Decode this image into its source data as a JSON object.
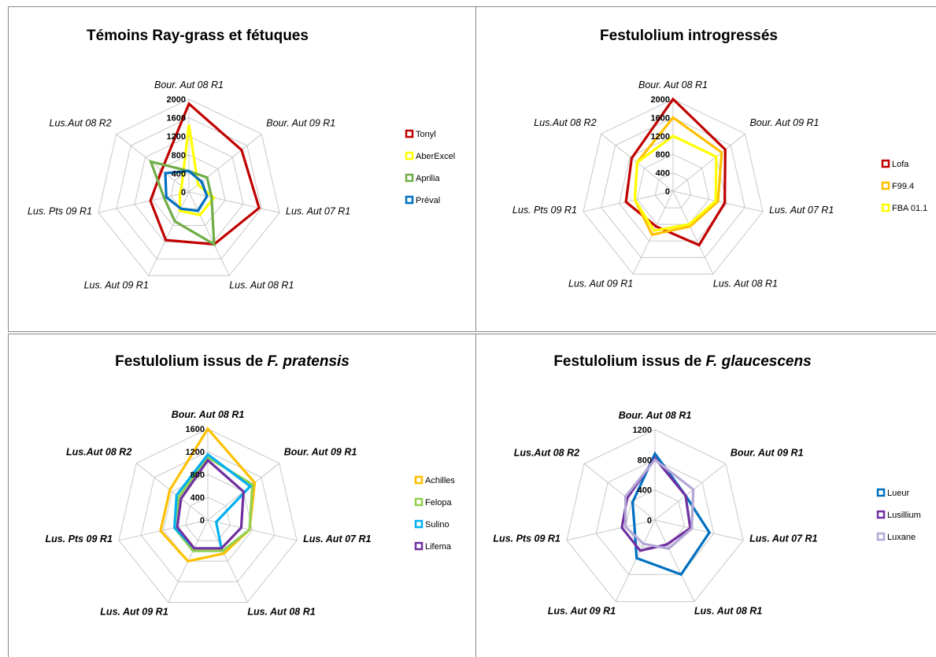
{
  "chart_data": [
    {
      "type": "radar",
      "title": "Témoins Ray-grass et fétuques",
      "title_italic": "",
      "axes": [
        "Bour. Aut 08 R1",
        "Bour. Aut 09 R1",
        "Lus. Aut 07 R1",
        "Lus. Aut 08 R1",
        "Lus. Aut 09 R1",
        "Lus. Pts 09 R1",
        "Lus.Aut 08 R2"
      ],
      "ticks": [
        0,
        400,
        800,
        1200,
        1600,
        2000
      ],
      "rmax": 2000,
      "grid": true,
      "legend_position": "right",
      "bold_axis_labels": false,
      "series": [
        {
          "name": "Tonyl",
          "color": "#c00000",
          "values": [
            1900,
            1450,
            1550,
            1250,
            1150,
            850,
            750
          ]
        },
        {
          "name": "AberExcel",
          "color": "#ffff00",
          "values": [
            1450,
            250,
            550,
            550,
            450,
            200,
            200
          ]
        },
        {
          "name": "Aprilia",
          "color": "#70ad47",
          "values": [
            450,
            500,
            500,
            1250,
            700,
            550,
            1050
          ]
        },
        {
          "name": "Préval",
          "color": "#0070c0",
          "values": [
            450,
            350,
            400,
            450,
            400,
            500,
            650
          ]
        }
      ]
    },
    {
      "type": "radar",
      "title": "Festulolium introgressés",
      "title_italic": "",
      "axes": [
        "Bour. Aut 08 R1",
        "Bour. Aut 09 R1",
        "Lus. Aut 07 R1",
        "Lus. Aut 08 R1",
        "Lus. Aut 09 R1",
        "Lus. Pts 09 R1",
        "Lus.Aut 08 R2"
      ],
      "ticks": [
        0,
        400,
        800,
        1200,
        1600,
        2000
      ],
      "rmax": 2000,
      "grid": true,
      "legend_position": "right",
      "bold_axis_labels": false,
      "series": [
        {
          "name": "Lofa",
          "color": "#c00000",
          "values": [
            2000,
            1450,
            1150,
            1300,
            850,
            1050,
            1150
          ]
        },
        {
          "name": "F99.4",
          "color": "#ffc000",
          "values": [
            1600,
            1350,
            1000,
            850,
            1050,
            850,
            1000
          ]
        },
        {
          "name": "FBA 01.1",
          "color": "#ffff00",
          "values": [
            1200,
            1200,
            950,
            800,
            950,
            850,
            1000
          ]
        }
      ]
    },
    {
      "type": "radar",
      "title": "Festulolium issus de ",
      "title_italic": "F. pratensis",
      "axes": [
        "Bour. Aut 08 R1",
        "Bour. Aut 09 R1",
        "Lus. Aut 07 R1",
        "Lus. Aut 08 R1",
        "Lus. Aut 09 R1",
        "Lus. Pts 09 R1",
        "Lus.Aut 08 R2"
      ],
      "ticks": [
        0,
        400,
        800,
        1200,
        1600
      ],
      "rmax": 1600,
      "grid": true,
      "legend_position": "right",
      "bold_axis_labels": true,
      "series": [
        {
          "name": "Achilles",
          "color": "#ffc000",
          "values": [
            1600,
            1050,
            750,
            650,
            800,
            850,
            850
          ]
        },
        {
          "name": "Felopa",
          "color": "#92d050",
          "values": [
            1100,
            1000,
            750,
            600,
            600,
            600,
            650
          ]
        },
        {
          "name": "Sulino",
          "color": "#00b0f0",
          "values": [
            1150,
            950,
            150,
            550,
            550,
            600,
            700
          ]
        },
        {
          "name": "Lifema",
          "color": "#7030a0",
          "values": [
            1050,
            800,
            600,
            550,
            550,
            550,
            600
          ]
        }
      ]
    },
    {
      "type": "radar",
      "title": "Festulolium issus de ",
      "title_italic": "F. glaucescens",
      "axes": [
        "Bour. Aut 08 R1",
        "Bour. Aut 09 R1",
        "Lus. Aut 07 R1",
        "Lus. Aut 08 R1",
        "Lus. Aut 09 R1",
        "Lus. Pts 09 R1",
        "Lus.Aut 08 R2"
      ],
      "ticks": [
        0,
        400,
        800,
        1200
      ],
      "rmax": 1200,
      "grid": true,
      "legend_position": "right",
      "bold_axis_labels": true,
      "series": [
        {
          "name": "Lueur",
          "color": "#0070c0",
          "values": [
            880,
            520,
            740,
            800,
            560,
            280,
            380
          ]
        },
        {
          "name": "Lusillium",
          "color": "#7030a0",
          "values": [
            820,
            520,
            480,
            360,
            450,
            450,
            470
          ]
        },
        {
          "name": "Luxane",
          "color": "#b4a7d6",
          "values": [
            800,
            650,
            500,
            420,
            350,
            400,
            500
          ]
        }
      ]
    }
  ]
}
